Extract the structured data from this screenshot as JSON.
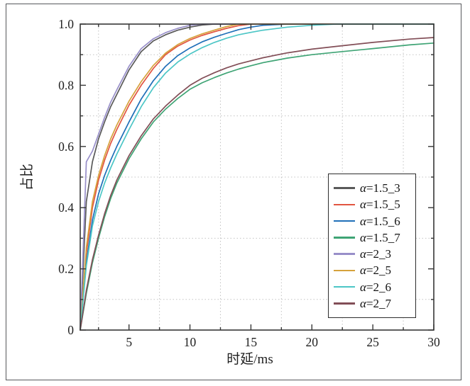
{
  "figure": {
    "background": "#ffffff",
    "frame_color": "#57585c",
    "axis_color": "#373737",
    "grid_color": "#c3c3c3",
    "text_color": "#1f1f1f"
  },
  "chart_data": {
    "type": "line",
    "title": "",
    "xlabel": "时延/ms",
    "ylabel": "占比",
    "xlim": [
      1,
      30
    ],
    "ylim": [
      0,
      1.0
    ],
    "xticks": [
      5,
      10,
      15,
      20,
      25,
      30
    ],
    "xtick_labels": [
      "5",
      "10",
      "15",
      "20",
      "25",
      "30"
    ],
    "yticks": [
      0,
      0.2,
      0.4,
      0.6,
      0.8,
      1.0
    ],
    "ytick_labels": [
      "0",
      "0.2",
      "0.4",
      "0.6",
      "0.8",
      "1.0"
    ],
    "minor_ticks_x": [
      2.5,
      7.5,
      12.5,
      17.5,
      22.5,
      27.5
    ],
    "minor_ticks_y": [
      0.1,
      0.3,
      0.5,
      0.7,
      0.9
    ],
    "grid": "minor-dotted",
    "legend_position": "inside-right-lower",
    "x": [
      1,
      1.5,
      2,
      2.5,
      3,
      3.5,
      4,
      5,
      6,
      7,
      8,
      9,
      10,
      11,
      12,
      13,
      14,
      15,
      16,
      18,
      20,
      22,
      25,
      28,
      30
    ],
    "series": [
      {
        "name": "α=1.5_3",
        "color": "#595959",
        "values": [
          0,
          0.42,
          0.55,
          0.625,
          0.68,
          0.73,
          0.77,
          0.85,
          0.91,
          0.945,
          0.965,
          0.98,
          0.99,
          0.997,
          1,
          1,
          1,
          1,
          1,
          1,
          1,
          1,
          1,
          1,
          1
        ]
      },
      {
        "name": "α=1.5_5",
        "color": "#e25540",
        "values": [
          0,
          0.25,
          0.4,
          0.49,
          0.555,
          0.61,
          0.655,
          0.735,
          0.8,
          0.855,
          0.9,
          0.928,
          0.948,
          0.963,
          0.975,
          0.986,
          0.995,
          1,
          1,
          1,
          1,
          1,
          1,
          1,
          1
        ]
      },
      {
        "name": "α=1.5_6",
        "color": "#1f6fb8",
        "values": [
          0,
          0.22,
          0.36,
          0.445,
          0.505,
          0.555,
          0.6,
          0.68,
          0.755,
          0.815,
          0.862,
          0.897,
          0.922,
          0.942,
          0.957,
          0.97,
          0.982,
          0.99,
          0.996,
          1,
          1,
          1,
          1,
          1,
          1
        ]
      },
      {
        "name": "α=1.5_7",
        "color": "#3fa475",
        "values": [
          0,
          0.12,
          0.22,
          0.3,
          0.37,
          0.43,
          0.48,
          0.56,
          0.625,
          0.68,
          0.722,
          0.757,
          0.787,
          0.808,
          0.825,
          0.84,
          0.853,
          0.864,
          0.874,
          0.889,
          0.9,
          0.908,
          0.92,
          0.932,
          0.938
        ]
      },
      {
        "name": "α=2_3",
        "color": "#988fc9",
        "values": [
          0,
          0.55,
          0.585,
          0.64,
          0.695,
          0.745,
          0.785,
          0.862,
          0.92,
          0.952,
          0.972,
          0.986,
          0.996,
          1,
          1,
          1,
          1,
          1,
          1,
          1,
          1,
          1,
          1,
          1,
          1
        ]
      },
      {
        "name": "α=2_5",
        "color": "#d6a23c",
        "values": [
          0,
          0.27,
          0.42,
          0.505,
          0.57,
          0.625,
          0.67,
          0.748,
          0.812,
          0.865,
          0.905,
          0.933,
          0.953,
          0.968,
          0.98,
          0.992,
          1,
          1,
          1,
          1,
          1,
          1,
          1,
          1,
          1
        ]
      },
      {
        "name": "α=2_6",
        "color": "#4cc6c6",
        "values": [
          0,
          0.21,
          0.34,
          0.42,
          0.48,
          0.53,
          0.575,
          0.655,
          0.73,
          0.792,
          0.84,
          0.876,
          0.902,
          0.923,
          0.94,
          0.954,
          0.965,
          0.973,
          0.98,
          0.99,
          0.996,
          1,
          1,
          1,
          1
        ]
      },
      {
        "name": "α=2_7",
        "color": "#824e57",
        "values": [
          0,
          0.13,
          0.23,
          0.31,
          0.38,
          0.44,
          0.49,
          0.57,
          0.635,
          0.69,
          0.732,
          0.768,
          0.8,
          0.823,
          0.841,
          0.857,
          0.87,
          0.88,
          0.89,
          0.906,
          0.918,
          0.927,
          0.94,
          0.951,
          0.956
        ]
      }
    ]
  }
}
